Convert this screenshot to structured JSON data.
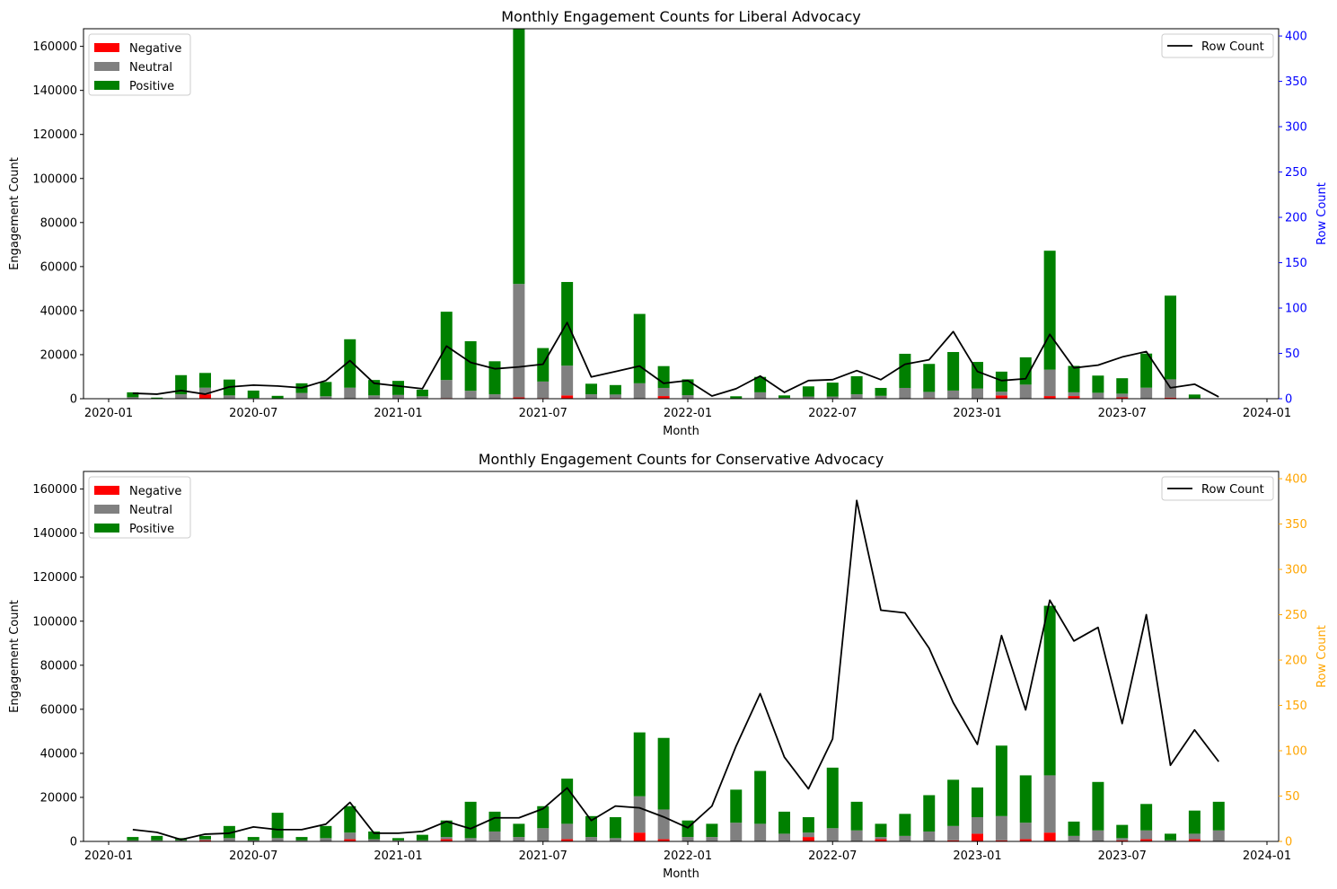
{
  "legend": {
    "negative": "Negative",
    "neutral": "Neutral",
    "positive": "Positive",
    "row_count": "Row Count"
  },
  "colors": {
    "negative": "#ff0000",
    "neutral": "#808080",
    "positive": "#008000",
    "line": "#000000",
    "liberal_right_axis": "#0000ff",
    "conservative_right_axis": "#ffa500"
  },
  "chart_data": [
    {
      "type": "bar",
      "stacked": true,
      "title": "Monthly Engagement Counts for Liberal Advocacy",
      "xlabel": "Month",
      "ylabel": "Engagement Count",
      "y2label": "Row Count",
      "ylim": [
        0,
        168000
      ],
      "y2lim": [
        0,
        408
      ],
      "yticks": [
        0,
        20000,
        40000,
        60000,
        80000,
        100000,
        120000,
        140000,
        160000
      ],
      "y2ticks": [
        0,
        50,
        100,
        150,
        200,
        250,
        300,
        350,
        400
      ],
      "xticks": [
        "2020-01",
        "2020-07",
        "2021-01",
        "2021-07",
        "2022-01",
        "2022-07",
        "2023-01",
        "2023-07",
        "2024-01"
      ],
      "legend_bars": "upper left",
      "legend_line": "upper right",
      "months": [
        "2020-02",
        "2020-03",
        "2020-04",
        "2020-05",
        "2020-06",
        "2020-07",
        "2020-08",
        "2020-09",
        "2020-10",
        "2020-11",
        "2020-12",
        "2021-01",
        "2021-02",
        "2021-03",
        "2021-04",
        "2021-05",
        "2021-06",
        "2021-07",
        "2021-08",
        "2021-09",
        "2021-10",
        "2021-11",
        "2021-12",
        "2022-01",
        "2022-02",
        "2022-03",
        "2022-04",
        "2022-05",
        "2022-06",
        "2022-07",
        "2022-08",
        "2022-09",
        "2022-10",
        "2022-11",
        "2022-12",
        "2023-01",
        "2023-02",
        "2023-03",
        "2023-04",
        "2023-05",
        "2023-06",
        "2023-07",
        "2023-08",
        "2023-09",
        "2023-10",
        "2023-11"
      ],
      "series": [
        {
          "name": "Negative",
          "values": [
            0,
            0,
            200,
            2000,
            200,
            0,
            0,
            100,
            100,
            200,
            100,
            100,
            100,
            300,
            100,
            100,
            600,
            300,
            1500,
            100,
            300,
            200,
            1200,
            100,
            0,
            0,
            200,
            0,
            0,
            0,
            0,
            100,
            100,
            300,
            200,
            200,
            1500,
            200,
            1200,
            1200,
            0,
            600,
            200,
            500,
            0,
            0
          ]
        },
        {
          "name": "Neutral",
          "values": [
            700,
            100,
            1800,
            3000,
            1300,
            300,
            200,
            2500,
            1000,
            4800,
            1400,
            1600,
            1000,
            8200,
            3500,
            1900,
            51500,
            7500,
            13500,
            1900,
            1600,
            6800,
            3700,
            1500,
            0,
            100,
            2700,
            400,
            1000,
            1000,
            2000,
            1200,
            4800,
            2800,
            3500,
            4400,
            1700,
            6200,
            12000,
            1700,
            2700,
            1700,
            4800,
            8300,
            200,
            0
          ]
        },
        {
          "name": "Positive",
          "values": [
            2200,
            400,
            8700,
            6700,
            7200,
            3400,
            1100,
            4400,
            6500,
            22000,
            7000,
            6400,
            3000,
            31000,
            22500,
            15000,
            116000,
            15200,
            38000,
            4800,
            4300,
            31500,
            9900,
            7200,
            0,
            1000,
            7000,
            1100,
            4600,
            6300,
            8200,
            3600,
            15500,
            12700,
            17500,
            12100,
            9100,
            12400,
            54000,
            12000,
            7800,
            7000,
            15500,
            38000,
            1700,
            0
          ]
        },
        {
          "name": "Row Count",
          "axis": "right",
          "values": [
            6,
            5,
            9,
            5,
            13,
            15,
            14,
            12,
            20,
            42,
            17,
            14,
            11,
            58,
            40,
            33,
            35,
            38,
            84,
            24,
            30,
            36,
            17,
            20,
            3,
            11,
            25,
            7,
            20,
            21,
            31,
            21,
            38,
            43,
            74,
            30,
            20,
            22,
            71,
            34,
            37,
            46,
            52,
            12,
            16,
            2
          ]
        }
      ]
    },
    {
      "type": "bar",
      "stacked": true,
      "title": "Monthly Engagement Counts for Conservative Advocacy",
      "xlabel": "Month",
      "ylabel": "Engagement Count",
      "y2label": "Row Count",
      "ylim": [
        0,
        168000
      ],
      "y2lim": [
        0,
        408
      ],
      "yticks": [
        0,
        20000,
        40000,
        60000,
        80000,
        100000,
        120000,
        140000,
        160000
      ],
      "y2ticks": [
        0,
        50,
        100,
        150,
        200,
        250,
        300,
        350,
        400
      ],
      "xticks": [
        "2020-01",
        "2020-07",
        "2021-01",
        "2021-07",
        "2022-01",
        "2022-07",
        "2023-01",
        "2023-07",
        "2024-01"
      ],
      "legend_bars": "upper left",
      "legend_line": "upper right",
      "months": [
        "2020-02",
        "2020-03",
        "2020-04",
        "2020-05",
        "2020-06",
        "2020-07",
        "2020-08",
        "2020-09",
        "2020-10",
        "2020-11",
        "2020-12",
        "2021-01",
        "2021-02",
        "2021-03",
        "2021-04",
        "2021-05",
        "2021-06",
        "2021-07",
        "2021-08",
        "2021-09",
        "2021-10",
        "2021-11",
        "2021-12",
        "2022-01",
        "2022-02",
        "2022-03",
        "2022-04",
        "2022-05",
        "2022-06",
        "2022-07",
        "2022-08",
        "2022-09",
        "2022-10",
        "2022-11",
        "2022-12",
        "2023-01",
        "2023-02",
        "2023-03",
        "2023-04",
        "2023-05",
        "2023-06",
        "2023-07",
        "2023-08",
        "2023-09",
        "2023-10",
        "2023-11"
      ],
      "series": [
        {
          "name": "Negative",
          "values": [
            0,
            0,
            0,
            500,
            0,
            0,
            0,
            0,
            0,
            1000,
            0,
            0,
            0,
            1000,
            0,
            0,
            0,
            0,
            1000,
            0,
            0,
            4000,
            1000,
            0,
            0,
            0,
            0,
            0,
            2000,
            0,
            0,
            1000,
            0,
            0,
            500,
            3500,
            500,
            1000,
            4000,
            0,
            0,
            500,
            1000,
            0,
            1000,
            0
          ]
        },
        {
          "name": "Neutral",
          "values": [
            500,
            500,
            500,
            500,
            1500,
            500,
            1500,
            500,
            1500,
            3000,
            1000,
            500,
            500,
            1000,
            1500,
            4500,
            2000,
            6000,
            7000,
            2000,
            1500,
            16500,
            13500,
            2000,
            2000,
            8500,
            8000,
            3500,
            2000,
            6000,
            5000,
            1000,
            2500,
            4500,
            6500,
            7500,
            11000,
            7500,
            26000,
            2500,
            5000,
            1000,
            4000,
            500,
            2500,
            5000
          ]
        },
        {
          "name": "Positive",
          "values": [
            1500,
            2000,
            1000,
            1500,
            5500,
            1500,
            11500,
            1500,
            5500,
            12000,
            3500,
            1000,
            2500,
            7500,
            16500,
            9000,
            6000,
            10000,
            20500,
            9500,
            9500,
            29000,
            32500,
            7500,
            6000,
            15000,
            24000,
            10000,
            7000,
            27500,
            13000,
            6000,
            10000,
            16500,
            21000,
            13500,
            32000,
            21500,
            77000,
            6500,
            22000,
            6000,
            12000,
            3000,
            10500,
            13000
          ]
        },
        {
          "name": "Row Count",
          "axis": "right",
          "values": [
            13,
            10,
            2,
            8,
            9,
            16,
            13,
            13,
            19,
            43,
            9,
            9,
            11,
            22,
            14,
            26,
            26,
            36,
            59,
            23,
            39,
            37,
            27,
            15,
            39,
            105,
            163,
            93,
            58,
            113,
            376,
            255,
            252,
            213,
            153,
            107,
            227,
            145,
            266,
            221,
            236,
            130,
            250,
            84,
            123,
            88
          ]
        }
      ]
    }
  ]
}
